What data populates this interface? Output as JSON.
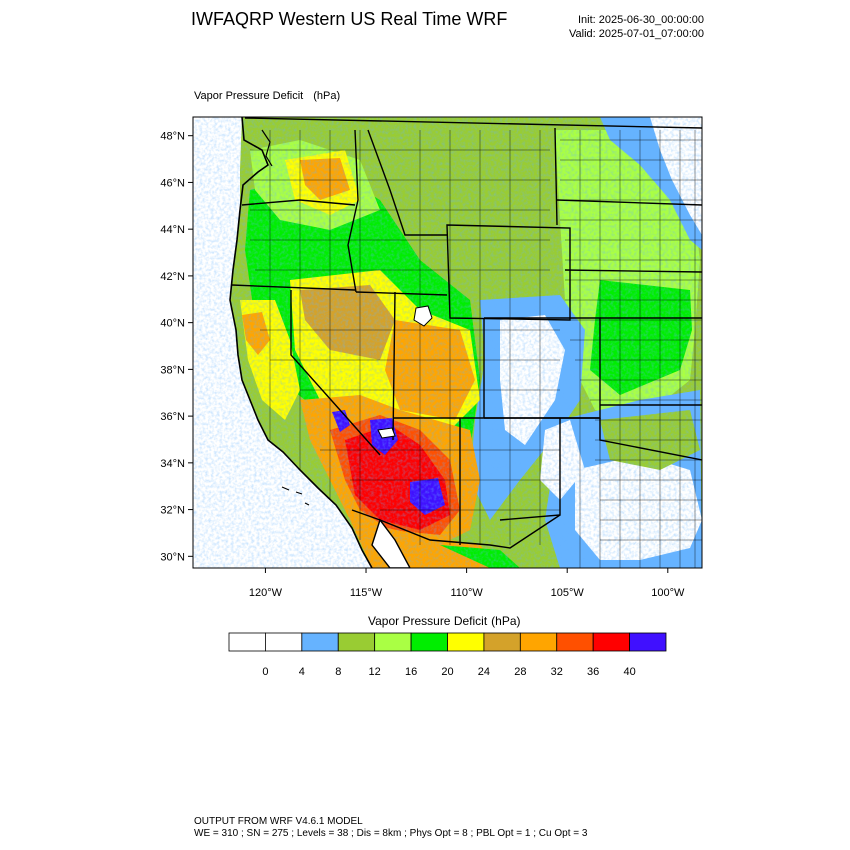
{
  "header": {
    "title": "IWFAQRP Western US Real Time WRF",
    "init": "Init: 2025-06-30_00:00:00",
    "valid": "Valid: 2025-07-01_07:00:00"
  },
  "plot": {
    "field_name": "Vapor Pressure Deficit",
    "field_units": "(hPa)",
    "lat_ticks": [
      "48°N",
      "46°N",
      "44°N",
      "42°N",
      "40°N",
      "38°N",
      "36°N",
      "34°N",
      "32°N",
      "30°N"
    ],
    "lon_ticks": [
      "120°W",
      "115°W",
      "110°W",
      "105°W",
      "100°W"
    ],
    "lat_range": [
      29.5,
      48.8
    ],
    "lon_range": [
      -123.6,
      -98.3
    ],
    "field_description": "gridded vapor pressure deficit shown as filled color contours over western US state and county boundaries"
  },
  "colorbar": {
    "title": "Vapor Pressure Deficit",
    "units": "(hPa)",
    "tick_labels": [
      "0",
      "4",
      "8",
      "12",
      "16",
      "20",
      "24",
      "28",
      "32",
      "36",
      "40"
    ],
    "colors": [
      "#ffffff",
      "#ffffff",
      "#66b3ff",
      "#99cc33",
      "#aaff44",
      "#00ee00",
      "#ffff00",
      "#d4a22a",
      "#ffa500",
      "#ff5000",
      "#ff0000",
      "#4010ff"
    ]
  },
  "footer": {
    "line1": "OUTPUT FROM WRF V4.6.1 MODEL",
    "line2": "WE = 310 ; SN = 275 ; Levels = 38 ; Dis = 8km ; Phys Opt = 8 ; PBL Opt = 1 ; Cu Opt = 3"
  }
}
